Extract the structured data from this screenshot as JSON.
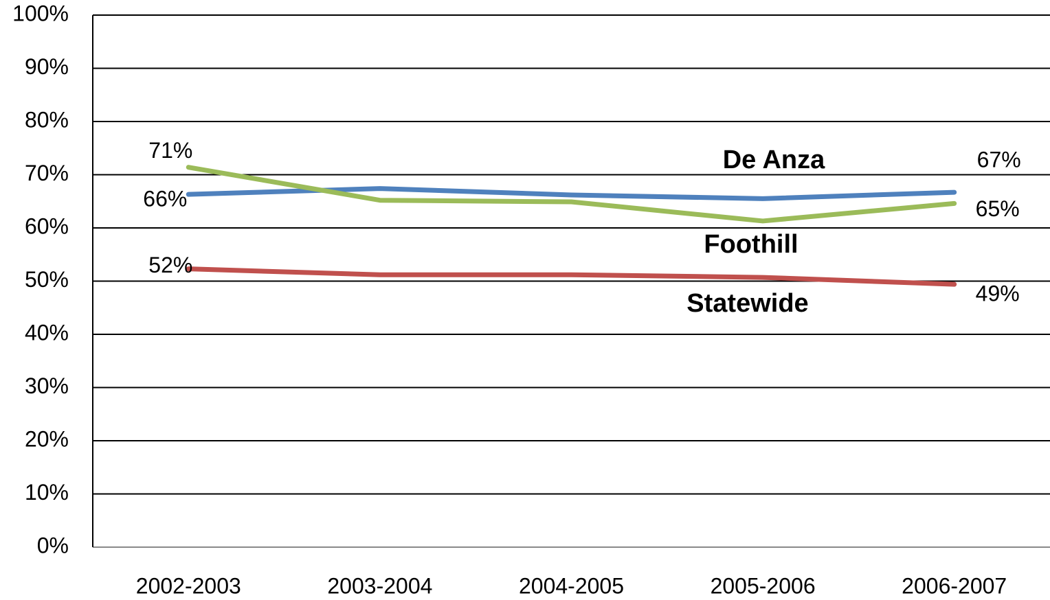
{
  "chart_data": {
    "type": "line",
    "categories": [
      "2002-2003",
      "2003-2004",
      "2004-2005",
      "2005-2006",
      "2006-2007"
    ],
    "series": [
      {
        "name": "De Anza",
        "color": "#4f81bd",
        "values": [
          66.3,
          67.4,
          66.2,
          65.5,
          66.7
        ],
        "value_labels": [
          "66%",
          null,
          null,
          null,
          "67%"
        ]
      },
      {
        "name": "Foothill",
        "color": "#9bbb59",
        "values": [
          71.4,
          65.2,
          64.9,
          61.3,
          64.6
        ],
        "value_labels": [
          "71%",
          null,
          null,
          null,
          "65%"
        ]
      },
      {
        "name": "Statewide",
        "color": "#c0504d",
        "values": [
          52.3,
          51.2,
          51.2,
          50.7,
          49.4
        ],
        "value_labels": [
          "52%",
          null,
          null,
          null,
          "49%"
        ]
      }
    ],
    "ylim": [
      0,
      100
    ],
    "yticks": [
      {
        "value": 0,
        "label": "0%"
      },
      {
        "value": 10,
        "label": "10%"
      },
      {
        "value": 20,
        "label": "20%"
      },
      {
        "value": 30,
        "label": "30%"
      },
      {
        "value": 40,
        "label": "40%"
      },
      {
        "value": 50,
        "label": "50%"
      },
      {
        "value": 60,
        "label": "60%"
      },
      {
        "value": 70,
        "label": "70%"
      },
      {
        "value": 80,
        "label": "80%"
      },
      {
        "value": 90,
        "label": "90%"
      },
      {
        "value": 100,
        "label": "100%"
      }
    ],
    "grid": true
  }
}
